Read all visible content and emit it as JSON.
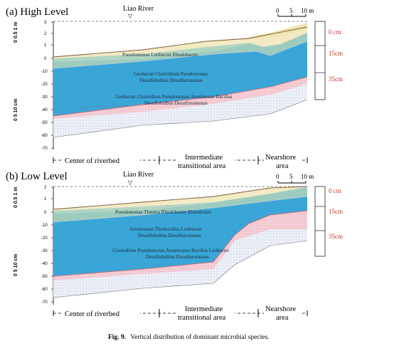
{
  "caption": {
    "label": "Fig. 9.",
    "text": "Vertical distribution of dominant microbial species."
  },
  "colors": {
    "sediment_blue": "#3aa6d8",
    "pink_zone": "#f6cdd5",
    "lower_zone": "#eef0f8",
    "top_soil": "#f3eac4",
    "green_band": "#a8d0bd",
    "depth_red": "#d23b2a"
  },
  "panels": [
    {
      "id": "a",
      "title": "(a) High Level",
      "river": "Liao River",
      "water_symbol": "▽",
      "scale_ticks": [
        "0",
        "5",
        "10 m"
      ],
      "y_ticks": [
        "3",
        "2",
        "1",
        "0",
        "-10",
        "-20",
        "-30",
        "-40",
        "-50",
        "-60",
        "-70"
      ],
      "vertical_scales": [
        "0  0.5 1 m",
        "0  5  10 cm"
      ],
      "species": [
        "Pseudomonas Lutibacter Rhodobacter",
        "Geobacter Clostridium Pseudomonas",
        "Desulfobulbus Desulfuromonas",
        "Geobacter Clostridium Pseudomonas Arenimonas Bacillus",
        "Desulfobulbus Desulfuromonas"
      ],
      "depths": [
        "0 cm",
        "15cm",
        "35cm"
      ],
      "zones": [
        {
          "label": "Center of riverbed"
        },
        {
          "label": "Intermediate",
          "label2": "transitional area"
        },
        {
          "label": "Nearshore",
          "label2": "area"
        }
      ]
    },
    {
      "id": "b",
      "title": "(b) Low Level",
      "river": "Liao River",
      "water_symbol": "▽",
      "scale_ticks": [
        "0",
        "5",
        "10 m"
      ],
      "y_ticks": [
        "2",
        "1",
        "0",
        "-10",
        "-20",
        "-30",
        "-40",
        "-50",
        "-60",
        "-70"
      ],
      "vertical_scales": [
        "0  0.5 1 m",
        "0  5  10 cm"
      ],
      "species": [
        "Pseudomonas Thauera Rhodobacter Rhizobiales",
        "Arenimonas Thiobacillus Lutibacter",
        "Desulfobulbus Desulfuromonas",
        "Clostridium Pseudomonas Arenimonas Bacillus Lutibacter",
        "Desulfobulbus Desulfuromonas"
      ],
      "depths": [
        "0 cm",
        "15cm",
        "35cm"
      ],
      "zones": [
        {
          "label": "Center of riverbed"
        },
        {
          "label": "Intermediate",
          "label2": "transitional area"
        },
        {
          "label": "Nearshore",
          "label2": "area"
        }
      ]
    }
  ]
}
